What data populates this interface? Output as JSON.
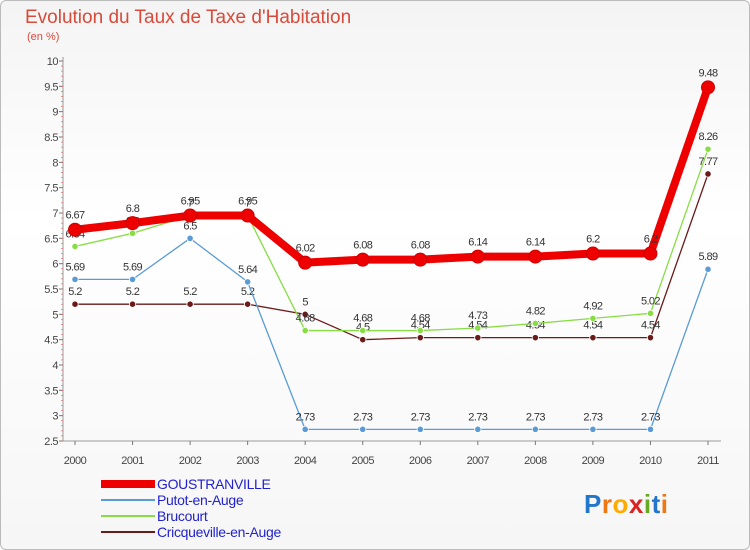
{
  "chart_data": {
    "type": "line",
    "title": "Evolution du Taux de Taxe d'Habitation",
    "ylabel": "(en %)",
    "xlabel": "",
    "x": [
      "2000",
      "2001",
      "2002",
      "2003",
      "2004",
      "2005",
      "2006",
      "2007",
      "2008",
      "2009",
      "2010",
      "2011"
    ],
    "ylim": [
      2.5,
      10
    ],
    "yticks": [
      "2.5",
      "3",
      "3.5",
      "4",
      "4.5",
      "5",
      "5.5",
      "6",
      "6.5",
      "7",
      "7.5",
      "8",
      "8.5",
      "9",
      "9.5",
      "10"
    ],
    "grid": false,
    "legend_position": "bottom-left",
    "series": [
      {
        "name": "GOUSTRANVILLE",
        "color": "#ee0000",
        "values": [
          6.67,
          6.8,
          6.95,
          6.95,
          6.02,
          6.08,
          6.08,
          6.14,
          6.14,
          6.2,
          6.2,
          9.48
        ],
        "labels": [
          "6.67",
          "6.8",
          "6.95",
          "6.95",
          "6.02",
          "6.08",
          "6.08",
          "6.14",
          "6.14",
          "6.2",
          "6.2",
          "9.48"
        ]
      },
      {
        "name": "Putot-en-Auge",
        "color": "#5b9bd5",
        "values": [
          5.69,
          5.69,
          6.5,
          5.64,
          2.73,
          2.73,
          2.73,
          2.73,
          2.73,
          2.73,
          2.73,
          5.89
        ],
        "labels": [
          "5.69",
          "5.69",
          "6.5",
          "5.64",
          "2.73",
          "2.73",
          "2.73",
          "2.73",
          "2.73",
          "2.73",
          "2.73",
          "5.89"
        ]
      },
      {
        "name": "Brucourt",
        "color": "#88dd44",
        "values": [
          6.34,
          6.6,
          6.95,
          6.95,
          4.68,
          4.68,
          4.68,
          4.73,
          4.82,
          4.92,
          5.02,
          8.26
        ],
        "labels": [
          "6.34",
          "6.6",
          "7",
          "7",
          "4.68",
          "4.68",
          "4.68",
          "4.73",
          "4.82",
          "4.92",
          "5.02",
          "8.26"
        ]
      },
      {
        "name": "Cricqueville-en-Auge",
        "color": "#6b1a1a",
        "values": [
          5.2,
          5.2,
          5.2,
          5.2,
          5.0,
          4.5,
          4.54,
          4.54,
          4.54,
          4.54,
          4.54,
          7.77
        ],
        "labels": [
          "5.2",
          "5.2",
          "5.2",
          "5.2",
          "5",
          "4.5",
          "4.54",
          "4.54",
          "4.54",
          "4.54",
          "4.54",
          "7.77"
        ]
      }
    ]
  },
  "logo": {
    "text": "Proxiti",
    "letters": [
      "P",
      "r",
      "o",
      "x",
      "i",
      "t",
      "i"
    ],
    "colors": [
      "#2277cc",
      "#ee7711",
      "#ffaa00",
      "#dd2222",
      "#66aa22",
      "#2277cc",
      "#ee7711"
    ]
  }
}
